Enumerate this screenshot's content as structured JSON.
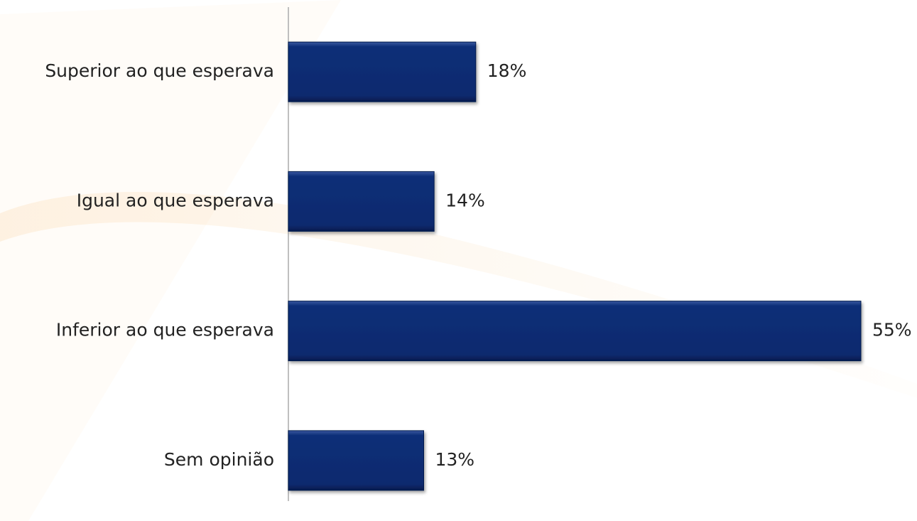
{
  "chart_data": {
    "type": "bar",
    "orientation": "horizontal",
    "categories": [
      "Superior ao que esperava",
      "Igual ao que esperava",
      "Inferior ao que esperava",
      "Sem opinião"
    ],
    "values": [
      18,
      14,
      55,
      13
    ],
    "value_labels": [
      "18%",
      "14%",
      "55%",
      "13%"
    ],
    "color": "#0b2a6e",
    "xlim": [
      0,
      55
    ]
  }
}
